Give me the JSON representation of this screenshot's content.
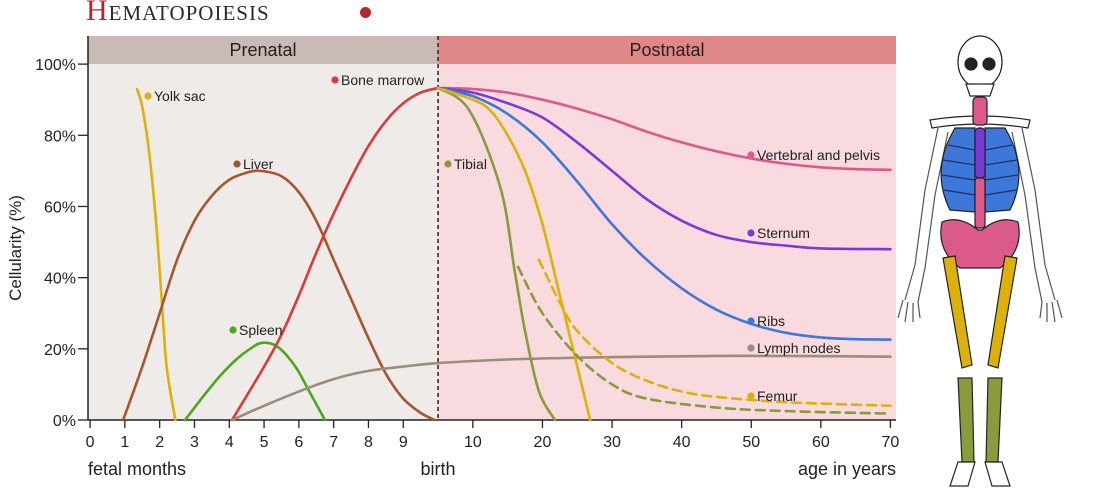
{
  "chart_data": {
    "type": "line",
    "title": "Hematopoiesis",
    "y_label": "Cellularity (%)",
    "x_row_labels": {
      "left": "fetal months",
      "middle": "birth",
      "right": "age in years"
    },
    "birth": 10,
    "regions": [
      {
        "label": "Prenatal",
        "band_color": "#c9bab6",
        "bg_color": "#efebe9"
      },
      {
        "label": "Postnatal",
        "band_color": "#e08888",
        "bg_color": "#f8dadf"
      }
    ],
    "xlim": [
      -0.06,
      23.16
    ],
    "ylim": [
      0,
      107.9
    ],
    "xticks": [
      0,
      1,
      2,
      3,
      4,
      5,
      6,
      7,
      8,
      9,
      {
        "value": 11,
        "label": "10"
      },
      {
        "value": 13,
        "label": "20"
      },
      {
        "value": 15,
        "label": "30"
      },
      {
        "value": 17,
        "label": "40"
      },
      {
        "value": 19,
        "label": "50"
      },
      {
        "value": 21,
        "label": "60"
      },
      {
        "value": 23,
        "label": "70"
      }
    ],
    "yticks": [
      {
        "value": 0,
        "label": "0%"
      },
      {
        "value": 20,
        "label": "20%"
      },
      {
        "value": 40,
        "label": "40%"
      },
      {
        "value": 60,
        "label": "60%"
      },
      {
        "value": 80,
        "label": "80%"
      },
      {
        "value": 100,
        "label": "100%"
      }
    ],
    "series": [
      {
        "name": "Yolk sac",
        "color": "#dcb20a",
        "x": [
          1.35,
          1.5,
          1.7,
          1.9,
          2.05,
          2.2,
          2.45
        ],
        "values": [
          93,
          88,
          75,
          55,
          35,
          15,
          0
        ]
      },
      {
        "name": "Liver",
        "color": "#a8542d",
        "x": [
          0.95,
          1.5,
          2,
          2.5,
          3,
          3.5,
          4,
          4.5,
          4.9,
          5.5,
          6,
          6.5,
          7,
          7.5,
          8,
          8.5,
          9,
          9.5,
          9.9
        ],
        "values": [
          0,
          15,
          30,
          45,
          56,
          63,
          67.5,
          69.5,
          70,
          68.5,
          64,
          56,
          45,
          34,
          23,
          13,
          6,
          2,
          0
        ]
      },
      {
        "name": "Spleen",
        "color": "#4aa81b",
        "x": [
          2.73,
          3.2,
          3.7,
          4.2,
          4.6,
          4.95,
          5.4,
          5.9,
          6.3,
          6.75
        ],
        "values": [
          0,
          6,
          12,
          17,
          20,
          21.7,
          20.5,
          15,
          8,
          0
        ]
      },
      {
        "name": "Bone marrow",
        "color": "#d93b3b",
        "x": [
          4.08,
          5,
          5.5,
          6,
          6.5,
          7,
          7.5,
          8,
          8.5,
          9,
          9.5,
          10
        ],
        "values": [
          0,
          15,
          24,
          35,
          47,
          58,
          68,
          77,
          84,
          89,
          92,
          93.3
        ]
      },
      {
        "name": "Lymph nodes",
        "color": "#9a8e78",
        "x": [
          4.08,
          5,
          6,
          7,
          8,
          9,
          10,
          12,
          14,
          16,
          18,
          20,
          23
        ],
        "values": [
          0,
          4,
          8,
          11.5,
          13.8,
          15,
          16,
          17,
          17.5,
          17.8,
          18,
          18,
          17.8
        ]
      },
      {
        "name": "Vertebral and pelvis",
        "color": "#dc5a8a",
        "x": [
          10,
          11,
          12,
          13,
          14,
          15,
          16,
          17,
          18,
          19,
          20,
          21,
          22,
          23
        ],
        "values": [
          93.3,
          93,
          92,
          90,
          87.5,
          84.5,
          81,
          78,
          75.5,
          73.5,
          72,
          71,
          70.5,
          70.3
        ]
      },
      {
        "name": "Sternum",
        "color": "#7a3ad6",
        "x": [
          10,
          11,
          12,
          13,
          14,
          15,
          16,
          17,
          18,
          19,
          20,
          21,
          23
        ],
        "values": [
          93.3,
          92,
          89,
          85,
          78,
          70,
          62,
          56,
          52,
          50,
          49,
          48.2,
          48
        ]
      },
      {
        "name": "Ribs",
        "color": "#3d78d8",
        "x": [
          10,
          11,
          12,
          13,
          14,
          15,
          16,
          17,
          18,
          19,
          20,
          21,
          22,
          23
        ],
        "values": [
          93.3,
          91,
          86,
          78,
          67,
          55,
          45,
          37,
          31,
          27,
          24.5,
          23.2,
          22.7,
          22.6
        ]
      },
      {
        "name": "Tibial",
        "color": "#889c3c",
        "x": [
          10,
          10.9,
          11.8,
          12.2,
          12.5,
          12.9,
          13.36
        ],
        "values": [
          93.3,
          87,
          65,
          42,
          25,
          8,
          0
        ]
      },
      {
        "name": "Femur",
        "color": "#dcb20a",
        "x": [
          10,
          11,
          11.5,
          12,
          12.5,
          13,
          13.5,
          14,
          14.37
        ],
        "values": [
          93.3,
          90,
          87,
          80,
          70,
          55,
          35,
          15,
          0
        ]
      },
      {
        "color": "#dcb20a",
        "dashed": true,
        "x": [
          12.9,
          13.5,
          14,
          15,
          16,
          17,
          18,
          20,
          23
        ],
        "values": [
          45,
          33,
          25,
          16,
          11,
          8,
          6.5,
          5,
          4
        ]
      },
      {
        "color": "#889c3c",
        "dashed": true,
        "x": [
          12.3,
          13,
          14,
          15,
          16,
          18,
          20,
          23
        ],
        "values": [
          43,
          30,
          18,
          10,
          6,
          3.5,
          2.5,
          1.8
        ]
      }
    ]
  }
}
